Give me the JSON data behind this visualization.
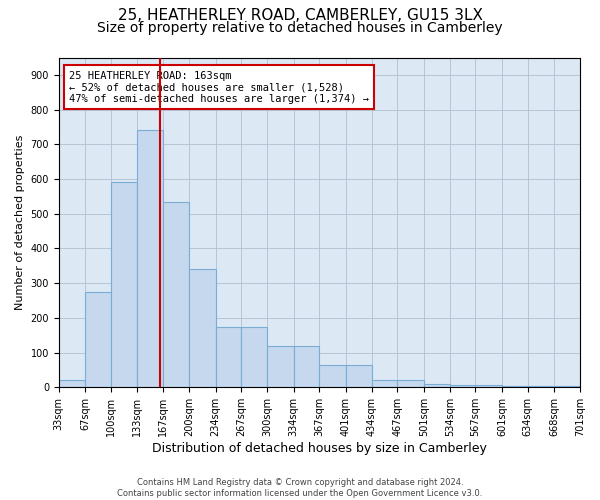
{
  "title": "25, HEATHERLEY ROAD, CAMBERLEY, GU15 3LX",
  "subtitle": "Size of property relative to detached houses in Camberley",
  "xlabel": "Distribution of detached houses by size in Camberley",
  "ylabel": "Number of detached properties",
  "bar_edges": [
    33,
    67,
    100,
    133,
    167,
    200,
    234,
    267,
    300,
    334,
    367,
    401,
    434,
    467,
    501,
    534,
    567,
    601,
    634,
    668,
    701
  ],
  "bar_values": [
    20,
    275,
    590,
    740,
    535,
    340,
    175,
    175,
    120,
    120,
    65,
    65,
    22,
    22,
    10,
    7,
    6,
    5,
    5,
    5
  ],
  "bar_color": "#c5d8ee",
  "bar_edge_color": "#7aadd4",
  "property_line_x": 163,
  "property_line_color": "#cc0000",
  "annotation_text": "25 HEATHERLEY ROAD: 163sqm\n← 52% of detached houses are smaller (1,528)\n47% of semi-detached houses are larger (1,374) →",
  "annotation_box_color": "#ffffff",
  "annotation_box_edge_color": "#cc0000",
  "ylim": [
    0,
    950
  ],
  "yticks": [
    0,
    100,
    200,
    300,
    400,
    500,
    600,
    700,
    800,
    900
  ],
  "background_color": "#ffffff",
  "axes_bg_color": "#dde8f5",
  "grid_color": "#b0bfd0",
  "footer_text": "Contains HM Land Registry data © Crown copyright and database right 2024.\nContains public sector information licensed under the Open Government Licence v3.0.",
  "title_fontsize": 11,
  "subtitle_fontsize": 10,
  "xlabel_fontsize": 9,
  "ylabel_fontsize": 8,
  "tick_fontsize": 7,
  "annot_fontsize": 7.5
}
